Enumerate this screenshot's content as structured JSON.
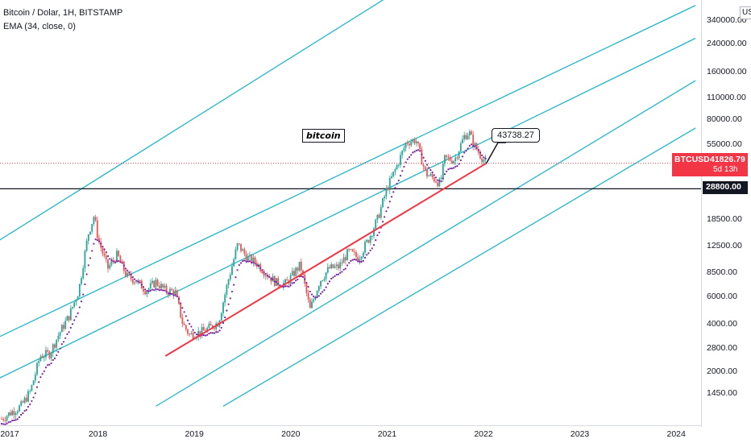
{
  "legend": {
    "symbol_line": "Bitcoin / Dolar, 1H, BITSTAMP",
    "indicator_line": "EMA (34, close, 0)"
  },
  "axis": {
    "currency": "USD",
    "y_ticks": [
      "340000.00",
      "240000.00",
      "160000.00",
      "110000.00",
      "80000.00",
      "55000.00",
      "28800.00",
      "18500.00",
      "12500.00",
      "8500.00",
      "6000.00",
      "4000.00",
      "2800.00",
      "2000.00",
      "1450.00"
    ],
    "x_ticks": [
      "2017",
      "2018",
      "2019",
      "2020",
      "2021",
      "2022",
      "2023",
      "2024"
    ]
  },
  "price_tag": {
    "symbol": "BTCUSD",
    "price": "41826.79",
    "countdown": "5d 13h"
  },
  "level_tag": "28800.00",
  "callout": "43738.27",
  "text_label": "bitcoin",
  "colors": {
    "up": "#26a69a",
    "down": "#ef5350",
    "channel": "#22b5c9",
    "trend": "#f23645",
    "ema": "#7b1fa2",
    "level": "#131722"
  },
  "chart_data": {
    "type": "candlestick",
    "title": "Bitcoin / Dolar, 1H, BITSTAMP",
    "y_scale": "log",
    "y_range": [
      1300,
      400000
    ],
    "x_range": [
      2016.97,
      2024.2
    ],
    "last_price": 41826.79,
    "horizontal_level": 28800,
    "callout_value": 43738.27,
    "price_path": [
      [
        2017.0,
        1000
      ],
      [
        2017.1,
        1100
      ],
      [
        2017.2,
        1200
      ],
      [
        2017.3,
        1500
      ],
      [
        2017.4,
        2500
      ],
      [
        2017.5,
        2600
      ],
      [
        2017.6,
        3500
      ],
      [
        2017.7,
        4500
      ],
      [
        2017.8,
        6500
      ],
      [
        2017.85,
        10000
      ],
      [
        2017.9,
        15000
      ],
      [
        2017.96,
        19500
      ],
      [
        2018.0,
        14000
      ],
      [
        2018.1,
        9000
      ],
      [
        2018.2,
        11000
      ],
      [
        2018.3,
        8000
      ],
      [
        2018.4,
        7500
      ],
      [
        2018.5,
        6500
      ],
      [
        2018.6,
        7400
      ],
      [
        2018.7,
        6500
      ],
      [
        2018.8,
        6400
      ],
      [
        2018.88,
        4000
      ],
      [
        2018.95,
        3400
      ],
      [
        2019.1,
        3600
      ],
      [
        2019.25,
        4100
      ],
      [
        2019.35,
        7500
      ],
      [
        2019.45,
        12800
      ],
      [
        2019.55,
        10500
      ],
      [
        2019.65,
        9700
      ],
      [
        2019.75,
        8300
      ],
      [
        2019.85,
        7300
      ],
      [
        2019.95,
        7200
      ],
      [
        2020.1,
        9500
      ],
      [
        2020.2,
        4900
      ],
      [
        2020.3,
        7500
      ],
      [
        2020.4,
        9000
      ],
      [
        2020.5,
        9200
      ],
      [
        2020.6,
        11500
      ],
      [
        2020.7,
        10500
      ],
      [
        2020.8,
        13500
      ],
      [
        2020.9,
        18500
      ],
      [
        2021.0,
        29000
      ],
      [
        2021.1,
        40000
      ],
      [
        2021.2,
        57000
      ],
      [
        2021.3,
        59000
      ],
      [
        2021.4,
        36000
      ],
      [
        2021.5,
        33000
      ],
      [
        2021.55,
        31000
      ],
      [
        2021.6,
        45000
      ],
      [
        2021.7,
        44000
      ],
      [
        2021.8,
        62000
      ],
      [
        2021.85,
        66000
      ],
      [
        2021.9,
        55000
      ],
      [
        2021.97,
        47000
      ],
      [
        2022.03,
        41826.79
      ]
    ],
    "ema": {
      "period": 34,
      "source": "close",
      "offset": 0
    },
    "channel_lines": [
      {
        "from": [
          2016.97,
          13500
        ],
        "to": [
          2021.85,
          1000000
        ]
      },
      {
        "from": [
          2016.97,
          3300
        ],
        "to": [
          2024.2,
          420000
        ]
      },
      {
        "from": [
          2016.97,
          1800
        ],
        "to": [
          2024.2,
          260000
        ]
      },
      {
        "from": [
          2018.6,
          1200
        ],
        "to": [
          2024.2,
          140000
        ]
      },
      {
        "from": [
          2019.3,
          1200
        ],
        "to": [
          2024.2,
          70000
        ]
      }
    ],
    "trend_line": {
      "from": [
        2018.7,
        2500
      ],
      "to": [
        2022.03,
        41826.79
      ]
    }
  }
}
